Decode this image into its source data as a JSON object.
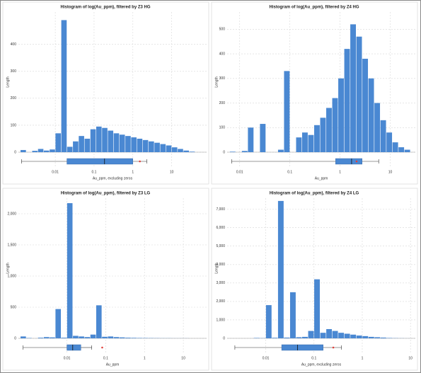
{
  "chart_data": [
    {
      "type": "histogram",
      "title": "Histogram of log(Au_ppm), filtered by Z3 HG",
      "xlabel": "Au_ppm, excluding zeros",
      "ylabel": "Length",
      "color": "#4a88d2",
      "mean_color": "#e0403a",
      "grid": true,
      "bins": [
        -2.9,
        -2.75,
        -2.6,
        -2.45,
        -2.3,
        -2.15,
        -2,
        -1.85,
        -1.7,
        -1.55,
        -1.4,
        -1.25,
        -1.1,
        -0.95,
        -0.8,
        -0.65,
        -0.5,
        -0.35,
        -0.2,
        -0.05,
        0.1,
        0.25,
        0.4,
        0.55,
        0.7,
        0.85,
        1,
        1.15,
        1.3,
        1.45,
        1.6
      ],
      "counts": [
        8,
        0,
        5,
        12,
        6,
        10,
        70,
        490,
        20,
        40,
        60,
        50,
        85,
        95,
        90,
        80,
        70,
        65,
        60,
        55,
        50,
        45,
        40,
        35,
        30,
        25,
        18,
        12,
        6,
        2
      ],
      "box": {
        "whislo": -2.87,
        "q1": -1.7,
        "med": -0.73,
        "q3": 0,
        "whishi": 0.36,
        "mean": 0.18
      },
      "xlim": [
        -2.95,
        1.9
      ],
      "ylim": [
        0,
        520
      ],
      "xticks": [
        {
          "value": -2,
          "label": "0.01"
        },
        {
          "value": -1,
          "label": "0.1"
        },
        {
          "value": 0,
          "label": "1"
        },
        {
          "value": 1,
          "label": "10"
        }
      ],
      "yticks": [
        0,
        100,
        200,
        300,
        400
      ]
    },
    {
      "type": "histogram",
      "title": "Histogram of log(Au_ppm), filtered by Z4 HG",
      "xlabel": "Au_ppm",
      "ylabel": "Length",
      "color": "#4a88d2",
      "mean_color": "#e0403a",
      "grid": true,
      "bins": [
        -2.2,
        -2.08,
        -1.96,
        -1.84,
        -1.72,
        -1.6,
        -1.48,
        -1.36,
        -1.24,
        -1.12,
        -1,
        -0.88,
        -0.76,
        -0.64,
        -0.52,
        -0.4,
        -0.28,
        -0.16,
        -0.04,
        0.08,
        0.2,
        0.32,
        0.44,
        0.56,
        0.68,
        0.8,
        0.92,
        1.04,
        1.16,
        1.28,
        1.4
      ],
      "counts": [
        2,
        0,
        5,
        100,
        0,
        115,
        0,
        0,
        10,
        330,
        0,
        60,
        80,
        70,
        110,
        140,
        180,
        220,
        300,
        420,
        520,
        470,
        380,
        300,
        200,
        130,
        80,
        40,
        20,
        10
      ],
      "box": {
        "whislo": -2.16,
        "q1": -0.09,
        "med": 0.23,
        "q3": 0.44,
        "whishi": 0.77,
        "mean": 0.33
      },
      "xlim": [
        -2.25,
        1.5
      ],
      "ylim": [
        0,
        570
      ],
      "xticks": [
        {
          "value": -2,
          "label": "0.01"
        },
        {
          "value": -1,
          "label": "0.1"
        },
        {
          "value": 0,
          "label": "1"
        },
        {
          "value": 1,
          "label": "10"
        }
      ],
      "yticks": [
        0,
        100,
        200,
        300,
        400,
        500
      ]
    },
    {
      "type": "histogram",
      "title": "Histogram of log(Au_ppm), filtered by Z3 LG",
      "xlabel": "Au_ppm",
      "ylabel": "Length",
      "color": "#4a88d2",
      "mean_color": "#e0403a",
      "grid": true,
      "bins": [
        -3.2,
        -3.05,
        -2.9,
        -2.75,
        -2.6,
        -2.45,
        -2.3,
        -2.15,
        -2,
        -1.85,
        -1.7,
        -1.55,
        -1.4,
        -1.25,
        -1.1,
        -0.95,
        -0.8,
        -0.65,
        -0.5,
        -0.35,
        -0.2,
        -0.05,
        0.1,
        0.25,
        0.4,
        0.55,
        0.7,
        0.85,
        1,
        1.15,
        1.3
      ],
      "counts": [
        30,
        5,
        0,
        10,
        20,
        15,
        470,
        10,
        2170,
        40,
        30,
        20,
        60,
        530,
        25,
        30,
        20,
        15,
        10,
        8,
        6,
        5,
        4,
        3,
        2,
        2,
        1,
        1,
        1,
        0
      ],
      "box": {
        "whislo": -3.13,
        "q1": -2,
        "med": -1.85,
        "q3": -1.64,
        "whishi": -1.36,
        "mean": -1.09
      },
      "xlim": [
        -3.25,
        1.6
      ],
      "ylim": [
        0,
        2250
      ],
      "xticks": [
        {
          "value": -2,
          "label": "0.01"
        },
        {
          "value": -1,
          "label": "0.1"
        },
        {
          "value": 0,
          "label": "1"
        },
        {
          "value": 1,
          "label": "10"
        }
      ],
      "yticks": [
        0,
        500,
        {
          "value": 1000,
          "label": "1,000"
        },
        {
          "value": 1500,
          "label": "1,500"
        },
        {
          "value": 2000,
          "label": "2,000"
        }
      ]
    },
    {
      "type": "histogram",
      "title": "Histogram of log(Au_ppm), filtered by Z4 LG",
      "xlabel": "Au_ppm, excluding zeros",
      "ylabel": "Length",
      "color": "#4a88d2",
      "mean_color": "#e0403a",
      "grid": true,
      "bins": [
        -2.75,
        -2.625,
        -2.5,
        -2.375,
        -2.25,
        -2.125,
        -2,
        -1.875,
        -1.75,
        -1.625,
        -1.5,
        -1.375,
        -1.25,
        -1.125,
        -1,
        -0.875,
        -0.75,
        -0.625,
        -0.5,
        -0.375,
        -0.25,
        -0.125,
        0,
        0.125,
        0.25,
        0.375,
        0.5,
        0.625,
        0.75,
        0.875,
        1
      ],
      "counts": [
        0,
        0,
        0,
        0,
        20,
        10,
        1800,
        30,
        7450,
        40,
        2500,
        60,
        80,
        400,
        3200,
        300,
        500,
        400,
        300,
        250,
        200,
        150,
        120,
        80,
        60,
        40,
        20,
        10,
        5,
        2
      ],
      "box": {
        "whislo": -2.64,
        "q1": -1.67,
        "med": -1.34,
        "q3": -0.81,
        "whishi": -0.43,
        "mean": -0.6
      },
      "xlim": [
        -2.8,
        1.1
      ],
      "ylim": [
        0,
        7600
      ],
      "xticks": [
        {
          "value": -2,
          "label": "0.01"
        },
        {
          "value": -1,
          "label": "0.1"
        },
        {
          "value": 0,
          "label": "1"
        },
        {
          "value": 1,
          "label": "10"
        }
      ],
      "yticks": [
        0,
        {
          "value": 1000,
          "label": "1,000"
        },
        {
          "value": 2000,
          "label": "2,000"
        },
        {
          "value": 3000,
          "label": "3,000"
        },
        {
          "value": 4000,
          "label": "4,000"
        },
        {
          "value": 5000,
          "label": "5,000"
        },
        {
          "value": 6000,
          "label": "6,000"
        },
        {
          "value": 7000,
          "label": "7,000"
        }
      ]
    }
  ]
}
